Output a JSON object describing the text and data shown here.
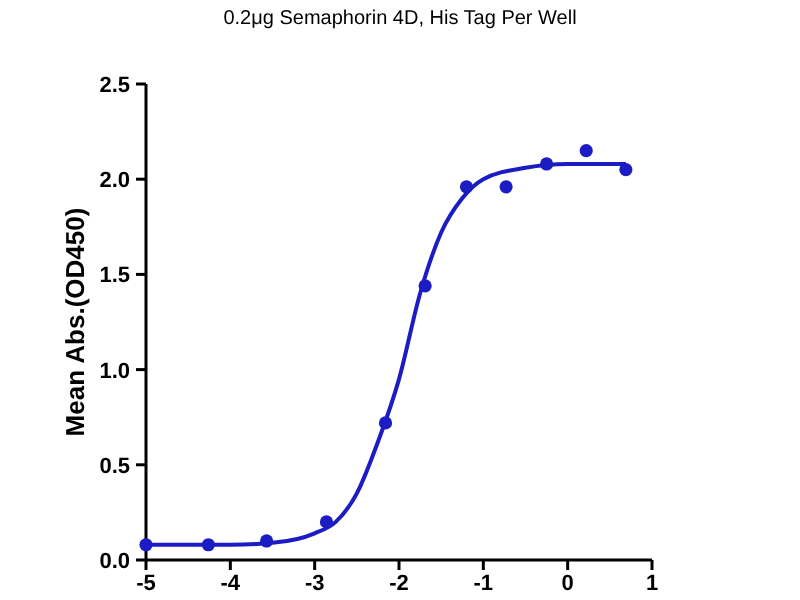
{
  "chart_data": {
    "type": "scatter",
    "title": "0.2μg Semaphorin 4D, His Tag Per Well",
    "ylabel": "Mean Abs.(OD450)",
    "xlim": [
      -5,
      1
    ],
    "xticks": [
      -5,
      -4,
      -3,
      -2,
      -1,
      0,
      1
    ],
    "ylim": [
      0,
      2.5
    ],
    "yticks": [
      {
        "value": 0,
        "label": "0.0"
      },
      {
        "value": 0.5,
        "label": "0.5"
      },
      {
        "value": 1,
        "label": "1.0"
      },
      {
        "value": 1.5,
        "label": "1.5"
      },
      {
        "value": 2,
        "label": "2.0"
      },
      {
        "value": 2.5,
        "label": "2.5"
      }
    ],
    "grid": false,
    "marker": "circle",
    "series": [
      {
        "color": "#1c1cc4",
        "x": [
          -5,
          -4.26,
          -3.57,
          -2.86,
          -2.16,
          -1.69,
          -1.2,
          -0.73,
          -0.25,
          0.22,
          0.69
        ],
        "values": [
          0.08,
          0.08,
          0.1,
          0.2,
          0.72,
          1.44,
          1.96,
          1.96,
          2.08,
          2.15,
          2.05
        ]
      },
      {
        "type": "line",
        "color": "#1c1cc4",
        "marker": "none",
        "line_style": "solid",
        "x": [
          -5,
          -4,
          -3.5,
          -3,
          -2.75,
          -2.5,
          -2.25,
          -2,
          -1.75,
          -1.5,
          -1.25,
          -1,
          -0.5,
          0,
          0.69
        ],
        "values": [
          0.08,
          0.08,
          0.09,
          0.14,
          0.2,
          0.35,
          0.62,
          0.95,
          1.4,
          1.72,
          1.9,
          2.0,
          2.06,
          2.08,
          2.08
        ]
      }
    ]
  }
}
